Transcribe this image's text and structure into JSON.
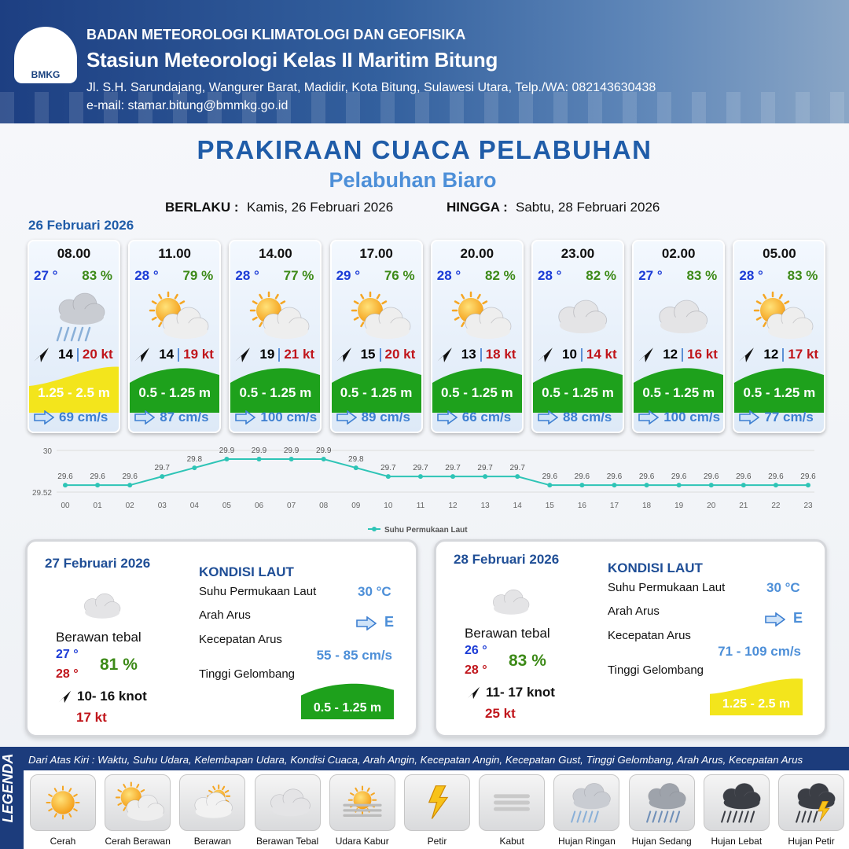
{
  "header": {
    "logo": "BMKG",
    "org": "BADAN METEOROLOGI KLIMATOLOGI DAN GEOFISIKA",
    "station": "Stasiun Meteorologi Kelas II Maritim Bitung",
    "address": "Jl. S.H. Sarundajang, Wangurer Barat, Madidir, Kota Bitung, Sulawesi Utara, Telp./WA: 082143630438",
    "email": "e-mail: stamar.bitung@bmmkg.go.id"
  },
  "title": "PRAKIRAAN CUACA PELABUHAN",
  "subtitle": "Pelabuhan Biaro",
  "valid_from_label": "BERLAKU :",
  "valid_from": "Kamis, 26 Februari 2026",
  "valid_to_label": "HINGGA :",
  "valid_to": "Sabtu, 28 Februari 2026",
  "day1_date": "26 Februari 2026",
  "cards": [
    {
      "time": "08.00",
      "temp": "27 °",
      "humidity": "83 %",
      "wind": "14",
      "gust": "20 kt",
      "wave": "1.25 - 2.5 m",
      "current": "69 cm/s"
    },
    {
      "time": "11.00",
      "temp": "28 °",
      "humidity": "79 %",
      "wind": "14",
      "gust": "19 kt",
      "wave": "0.5 - 1.25 m",
      "current": "87 cm/s"
    },
    {
      "time": "14.00",
      "temp": "28 °",
      "humidity": "77 %",
      "wind": "19",
      "gust": "21 kt",
      "wave": "0.5 - 1.25 m",
      "current": "100 cm/s"
    },
    {
      "time": "17.00",
      "temp": "29 °",
      "humidity": "76 %",
      "wind": "15",
      "gust": "20 kt",
      "wave": "0.5 - 1.25 m",
      "current": "89 cm/s"
    },
    {
      "time": "20.00",
      "temp": "28 °",
      "humidity": "82 %",
      "wind": "13",
      "gust": "18 kt",
      "wave": "0.5 - 1.25 m",
      "current": "66 cm/s"
    },
    {
      "time": "23.00",
      "temp": "28 °",
      "humidity": "82 %",
      "wind": "10",
      "gust": "14 kt",
      "wave": "0.5 - 1.25 m",
      "current": "88 cm/s"
    },
    {
      "time": "02.00",
      "temp": "27 °",
      "humidity": "83 %",
      "wind": "12",
      "gust": "16 kt",
      "wave": "0.5 - 1.25 m",
      "current": "100 cm/s"
    },
    {
      "time": "05.00",
      "temp": "28 °",
      "humidity": "83 %",
      "wind": "12",
      "gust": "17 kt",
      "wave": "0.5 - 1.25 m",
      "current": "77 cm/s"
    }
  ],
  "chart_data": {
    "type": "line",
    "categories": [
      "00",
      "01",
      "02",
      "03",
      "04",
      "05",
      "06",
      "07",
      "08",
      "09",
      "10",
      "11",
      "12",
      "13",
      "14",
      "15",
      "16",
      "17",
      "18",
      "19",
      "20",
      "21",
      "22",
      "23"
    ],
    "series": [
      {
        "name": "Suhu Permukaan Laut",
        "color": "#2ec4b6",
        "values": [
          29.6,
          29.6,
          29.6,
          29.7,
          29.8,
          29.9,
          29.9,
          29.9,
          29.9,
          29.8,
          29.7,
          29.7,
          29.7,
          29.7,
          29.7,
          29.6,
          29.6,
          29.6,
          29.6,
          29.6,
          29.6,
          29.6,
          29.6,
          29.6
        ]
      }
    ],
    "ylim": [
      29.52,
      30
    ],
    "yticks": [
      29.52,
      30
    ],
    "grid": true,
    "legend": "bottom"
  },
  "days": [
    {
      "date": "27 Februari 2026",
      "kondisi_title": "KONDISI LAUT",
      "weather": "Berawan tebal",
      "temp_min": "27 °",
      "temp_max": "28 °",
      "humidity": "81 %",
      "wind": "10- 16 knot",
      "gust": "17 kt",
      "sst_label": "Suhu Permukaan Laut",
      "sst": "30 °C",
      "current_dir_label": "Arah Arus",
      "current_dir": "E",
      "current_speed_label": "Kecepatan Arus",
      "current_speed": "55 - 85 cm/s",
      "wave_label": "Tinggi Gelombang",
      "wave": "0.5 - 1.25 m"
    },
    {
      "date": "28 Februari 2026",
      "kondisi_title": "KONDISI LAUT",
      "weather": "Berawan tebal",
      "temp_min": "26 °",
      "temp_max": "28 °",
      "humidity": "83 %",
      "wind": "11- 17 knot",
      "gust": "25 kt",
      "sst_label": "Suhu Permukaan Laut",
      "sst": "30 °C",
      "current_dir_label": "Arah Arus",
      "current_dir": "E",
      "current_speed_label": "Kecepatan Arus",
      "current_speed": "71 - 109 cm/s",
      "wave_label": "Tinggi Gelombang",
      "wave": "1.25 - 2.5 m"
    }
  ],
  "legend": {
    "title": "LEGENDA",
    "description": "Dari Atas Kiri : Waktu, Suhu Udara, Kelembapan Udara, Kondisi Cuaca, Arah Angin, Kecepatan Angin, Kecepatan Gust, Tinggi Gelombang, Arah Arus, Kecepatan Arus",
    "items": [
      "Cerah",
      "Cerah Berawan",
      "Berawan",
      "Berawan Tebal",
      "Udara Kabur",
      "Petir",
      "Kabut",
      "Hujan Ringan",
      "Hujan Sedang",
      "Hujan Lebat",
      "Hujan Petir"
    ]
  }
}
